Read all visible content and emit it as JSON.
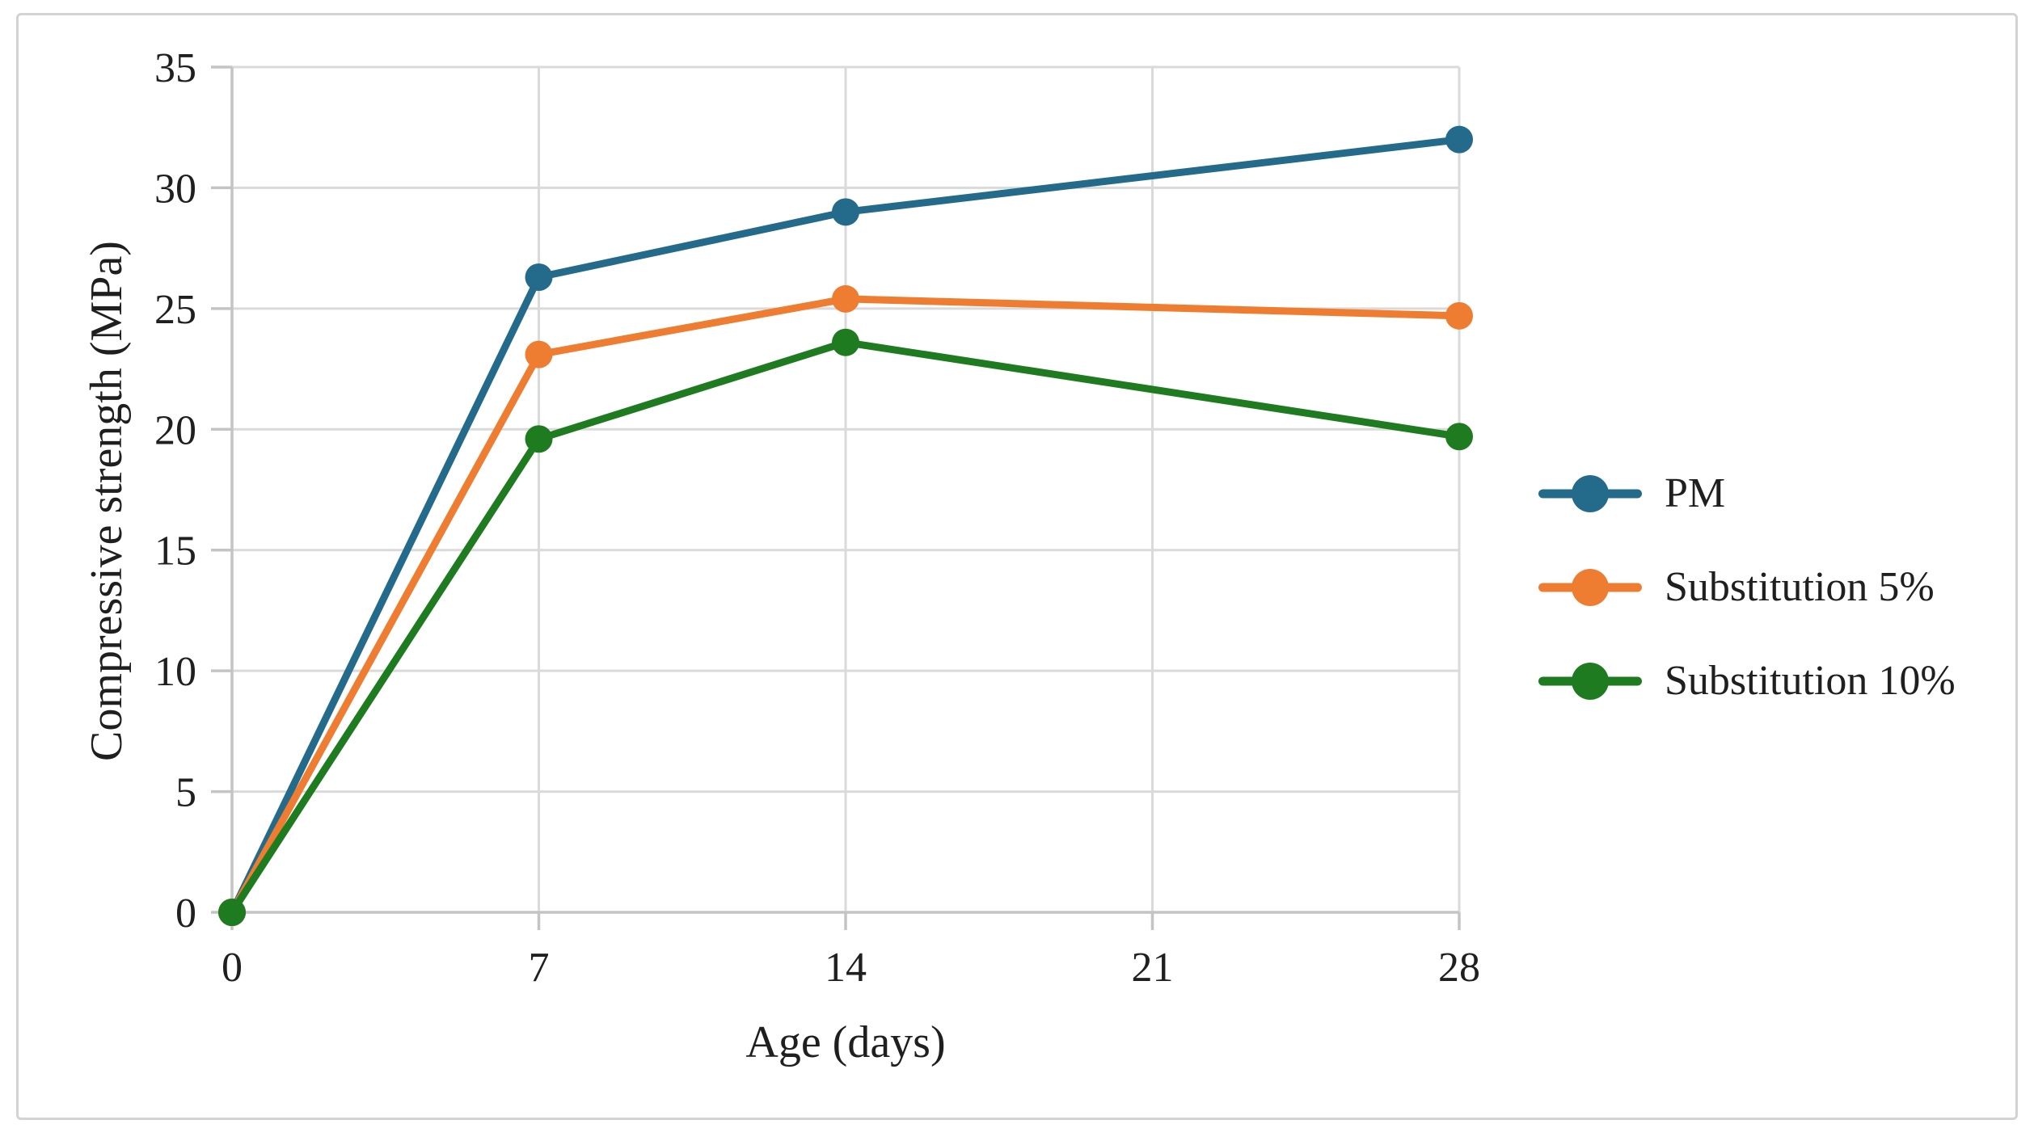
{
  "figure": {
    "background_color": "#ffffff",
    "border_color": "#d3d3d3"
  },
  "chart_data": {
    "type": "line",
    "x": [
      0,
      7,
      14,
      28
    ],
    "x_ticks": [
      "0",
      "7",
      "14",
      "21",
      "28"
    ],
    "x_tick_values": [
      0,
      7,
      14,
      21,
      28
    ],
    "y_ticks": [
      "0",
      "5",
      "10",
      "15",
      "20",
      "25",
      "30",
      "35"
    ],
    "y_tick_values": [
      0,
      5,
      10,
      15,
      20,
      25,
      30,
      35
    ],
    "xlim": [
      0,
      28
    ],
    "ylim": [
      0,
      35
    ],
    "xlabel": "Age (days)",
    "ylabel": "Compressive strength (MPa)",
    "grid": true,
    "legend_position": "right",
    "marker": "circle",
    "series": [
      {
        "name": "PM",
        "color": "#246a8b",
        "values": [
          0,
          26.3,
          29.0,
          32.0
        ]
      },
      {
        "name": "Substitution 5%",
        "color": "#ee7d31",
        "values": [
          0,
          23.1,
          25.4,
          24.7
        ]
      },
      {
        "name": "Substitution 10%",
        "color": "#1e7b20",
        "values": [
          0,
          19.6,
          23.6,
          19.7
        ]
      }
    ],
    "colors": {
      "gridline": "#dadada",
      "axis": "#c4c4c4",
      "text": "#1f1f1f"
    }
  }
}
